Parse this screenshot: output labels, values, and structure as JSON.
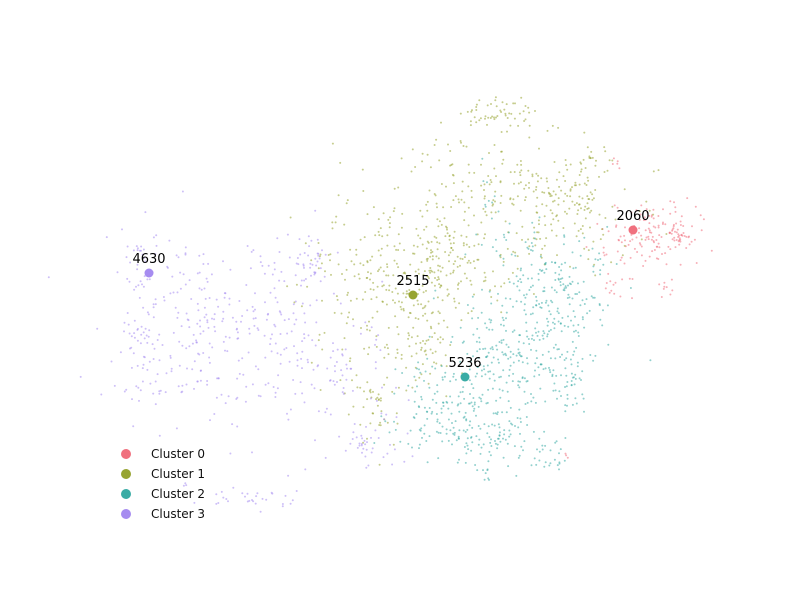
{
  "chart_data": {
    "type": "scatter",
    "title": "",
    "xlabel": "",
    "ylabel": "",
    "axes_visible": false,
    "grid": false,
    "legend_position": "bottom-left",
    "series": [
      {
        "name": "Cluster 0",
        "color": "#f0707e",
        "centroid": {
          "label": "2060",
          "x": 633,
          "y": 230
        },
        "blobs": [
          {
            "cx": 648,
            "cy": 232,
            "sx": 24,
            "sy": 16,
            "n": 120
          },
          {
            "cx": 682,
            "cy": 236,
            "sx": 7,
            "sy": 7,
            "n": 36
          },
          {
            "cx": 618,
            "cy": 286,
            "sx": 10,
            "sy": 6,
            "n": 14
          },
          {
            "cx": 666,
            "cy": 290,
            "sx": 4,
            "sy": 6,
            "n": 8
          },
          {
            "cx": 616,
            "cy": 164,
            "sx": 4,
            "sy": 4,
            "n": 5
          },
          {
            "cx": 566,
            "cy": 456,
            "sx": 3,
            "sy": 2,
            "n": 3
          }
        ]
      },
      {
        "name": "Cluster 1",
        "color": "#97a431",
        "centroid": {
          "label": "2515",
          "x": 413,
          "y": 295
        },
        "blobs": [
          {
            "cx": 495,
            "cy": 115,
            "sx": 17,
            "sy": 9,
            "n": 55
          },
          {
            "cx": 470,
            "cy": 175,
            "sx": 28,
            "sy": 22,
            "n": 60
          },
          {
            "cx": 550,
            "cy": 205,
            "sx": 40,
            "sy": 30,
            "n": 200
          },
          {
            "cx": 380,
            "cy": 270,
            "sx": 40,
            "sy": 42,
            "n": 210
          },
          {
            "cx": 450,
            "cy": 260,
            "sx": 32,
            "sy": 30,
            "n": 160
          },
          {
            "cx": 420,
            "cy": 350,
            "sx": 20,
            "sy": 26,
            "n": 70
          },
          {
            "cx": 375,
            "cy": 410,
            "sx": 14,
            "sy": 20,
            "n": 40
          },
          {
            "cx": 590,
            "cy": 165,
            "sx": 14,
            "sy": 14,
            "n": 25
          }
        ]
      },
      {
        "name": "Cluster 2",
        "color": "#3aaca5",
        "centroid": {
          "label": "5236",
          "x": 465,
          "y": 377
        },
        "blobs": [
          {
            "cx": 560,
            "cy": 290,
            "sx": 26,
            "sy": 26,
            "n": 160
          },
          {
            "cx": 515,
            "cy": 350,
            "sx": 38,
            "sy": 30,
            "n": 230
          },
          {
            "cx": 455,
            "cy": 410,
            "sx": 36,
            "sy": 22,
            "n": 170
          },
          {
            "cx": 505,
            "cy": 445,
            "sx": 28,
            "sy": 12,
            "n": 70
          },
          {
            "cx": 572,
            "cy": 375,
            "sx": 8,
            "sy": 14,
            "n": 30
          },
          {
            "cx": 520,
            "cy": 240,
            "sx": 18,
            "sy": 12,
            "n": 25
          },
          {
            "cx": 485,
            "cy": 200,
            "sx": 8,
            "sy": 14,
            "n": 10
          },
          {
            "cx": 550,
            "cy": 462,
            "sx": 10,
            "sy": 3,
            "n": 14
          },
          {
            "cx": 485,
            "cy": 474,
            "sx": 4,
            "sy": 4,
            "n": 8
          }
        ]
      },
      {
        "name": "Cluster 3",
        "color": "#a68cf0",
        "centroid": {
          "label": "4630",
          "x": 149,
          "y": 273
        },
        "blobs": [
          {
            "cx": 180,
            "cy": 320,
            "sx": 42,
            "sy": 45,
            "n": 160
          },
          {
            "cx": 260,
            "cy": 340,
            "sx": 45,
            "sy": 50,
            "n": 170
          },
          {
            "cx": 140,
            "cy": 315,
            "sx": 7,
            "sy": 35,
            "n": 35
          },
          {
            "cx": 140,
            "cy": 390,
            "sx": 12,
            "sy": 8,
            "n": 14
          },
          {
            "cx": 320,
            "cy": 260,
            "sx": 14,
            "sy": 18,
            "n": 35
          },
          {
            "cx": 340,
            "cy": 380,
            "sx": 22,
            "sy": 30,
            "n": 55
          },
          {
            "cx": 370,
            "cy": 445,
            "sx": 18,
            "sy": 10,
            "n": 35
          },
          {
            "cx": 250,
            "cy": 500,
            "sx": 24,
            "sy": 5,
            "n": 30
          },
          {
            "cx": 137,
            "cy": 248,
            "sx": 4,
            "sy": 3,
            "n": 8
          },
          {
            "cx": 185,
            "cy": 484,
            "sx": 2,
            "sy": 2,
            "n": 3
          }
        ]
      }
    ]
  }
}
